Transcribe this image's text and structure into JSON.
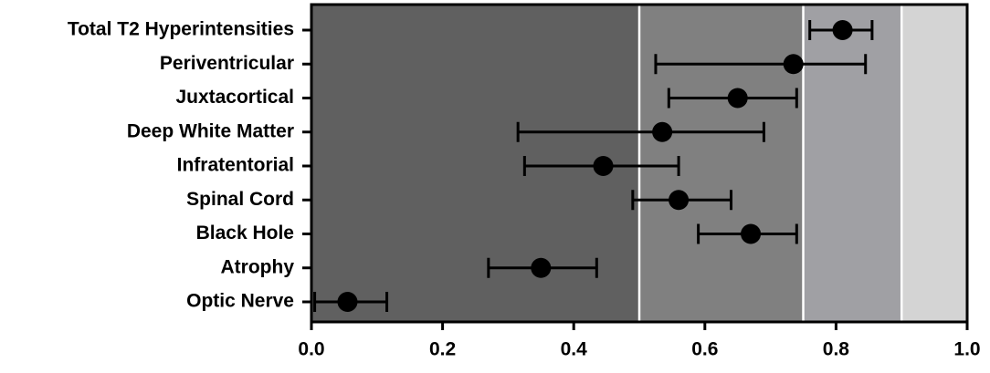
{
  "chart_data": {
    "type": "dot-errorbar",
    "categories": [
      "Total T2 Hyperintensities",
      "Periventricular",
      "Juxtacortical",
      "Deep White Matter",
      "Infratentorial",
      "Spinal Cord",
      "Black Hole",
      "Atrophy",
      "Optic Nerve"
    ],
    "values": [
      0.81,
      0.735,
      0.65,
      0.535,
      0.445,
      0.56,
      0.67,
      0.35,
      0.055
    ],
    "lower": [
      0.76,
      0.525,
      0.545,
      0.315,
      0.325,
      0.49,
      0.59,
      0.27,
      0.005
    ],
    "upper": [
      0.855,
      0.845,
      0.74,
      0.69,
      0.56,
      0.64,
      0.74,
      0.435,
      0.115
    ],
    "color": "#000000",
    "bands": [
      {
        "from": 0,
        "to": 0.5,
        "color": "#606060"
      },
      {
        "from": 0.5,
        "to": 0.75,
        "color": "#808080"
      },
      {
        "from": 0.75,
        "to": 0.9,
        "color": "#a0a0a4"
      },
      {
        "from": 0.9,
        "to": 1.0,
        "color": "#d4d4d4"
      }
    ],
    "xlim": [
      0,
      1.0
    ],
    "xticks": [
      {
        "value": 0,
        "label": "0.0"
      },
      0.2,
      0.4,
      0.6,
      0.8,
      {
        "value": 1.0,
        "label": "1.0"
      }
    ]
  }
}
